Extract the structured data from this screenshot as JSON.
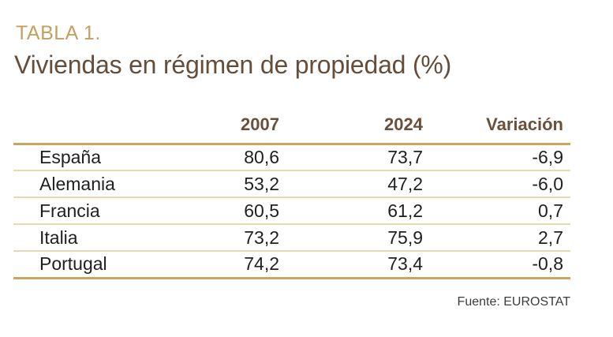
{
  "page": {
    "kicker": "TABLA 1.",
    "title": "Viviendas en régimen de propiedad (%)",
    "source": "Fuente: EUROSTAT"
  },
  "chart_data": {
    "type": "table",
    "title": "Viviendas en régimen de propiedad (%)",
    "table_label": "TABLA 1.",
    "columns": [
      "2007",
      "2024",
      "Variación"
    ],
    "row_header": "country",
    "rows": [
      {
        "country": "España",
        "y2007": "80,6",
        "y2024": "73,7",
        "variacion": "-6,9"
      },
      {
        "country": "Alemania",
        "y2007": "53,2",
        "y2024": "47,2",
        "variacion": "-6,0"
      },
      {
        "country": "Francia",
        "y2007": "60,5",
        "y2024": "61,2",
        "variacion": "0,7"
      },
      {
        "country": "Italia",
        "y2007": "73,2",
        "y2024": "75,9",
        "variacion": "2,7"
      },
      {
        "country": "Portugal",
        "y2007": "74,2",
        "y2024": "73,4",
        "variacion": "-0,8"
      }
    ],
    "source": "Fuente: EUROSTAT",
    "layout": {
      "number_format": "decimal-comma",
      "value_alignment": "right",
      "grid": "horizontal-rules-only"
    }
  },
  "colors": {
    "accent-gold": "#C3A05F",
    "line-gold": "#CBA45E",
    "line-light": "#EBD8AC",
    "brown": "#664D39",
    "header-brown": "#6B4F39",
    "text": "#1F1F1F",
    "source-gray": "#3C3C3C",
    "bg": "#FFFFFF"
  }
}
